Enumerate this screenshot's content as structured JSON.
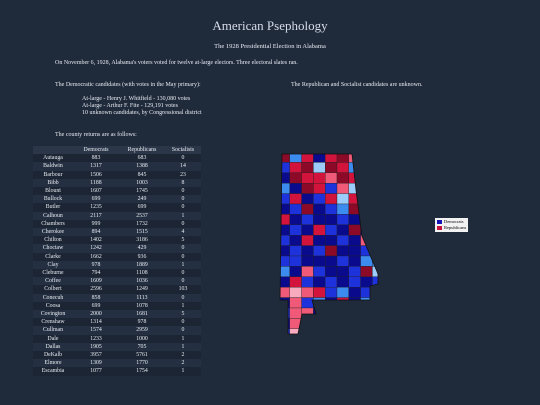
{
  "header": {
    "title": "American Psephology",
    "subtitle": "The 1928 Presidential Election in Alabama"
  },
  "intro": "On November 6, 1928, Alabama's voters voted for twelve at-large electors. Three electoral slates ran.",
  "dem_heading": "The Democratic candidates (with votes in the May primary):",
  "rep_note": "The Republican and Socialist candidates are unknown.",
  "candidates": [
    "At-large - Henry J. Whitfield - 130,080 votes",
    "At-large - Arthur F. Fite - 129,191 votes",
    "10 unknown candidates, by Congressional district"
  ],
  "returns_heading": "The county returns are as follows:",
  "table": {
    "headers": [
      "",
      "Democrats",
      "Republicans",
      "Socialists"
    ],
    "rows": [
      [
        "Autauga",
        "883",
        "683",
        "0"
      ],
      [
        "Baldwin",
        "1317",
        "1388",
        "14"
      ],
      [
        "Barbour",
        "1506",
        "845",
        "23"
      ],
      [
        "Bibb",
        "1188",
        "1003",
        "8"
      ],
      [
        "Blount",
        "1607",
        "1745",
        "0"
      ],
      [
        "Bullock",
        "699",
        "249",
        "0"
      ],
      [
        "Butler",
        "1235",
        "699",
        "0"
      ],
      [
        "Calhoun",
        "2117",
        "2537",
        "1"
      ],
      [
        "Chambers",
        "999",
        "1732",
        "0"
      ],
      [
        "Cherokee",
        "894",
        "1515",
        "4"
      ],
      [
        "Chilton",
        "1402",
        "3186",
        "5"
      ],
      [
        "Choctaw",
        "1242",
        "429",
        "0"
      ],
      [
        "Clarke",
        "1662",
        "936",
        "0"
      ],
      [
        "Clay",
        "978",
        "1889",
        "1"
      ],
      [
        "Cleburne",
        "794",
        "1108",
        "0"
      ],
      [
        "Coffee",
        "1609",
        "1036",
        "0"
      ],
      [
        "Colbert",
        "2596",
        "1249",
        "103"
      ],
      [
        "Conecuh",
        "858",
        "1113",
        "0"
      ],
      [
        "Coosa",
        "699",
        "1078",
        "1"
      ],
      [
        "Covington",
        "2000",
        "1681",
        "5"
      ],
      [
        "Crenshaw",
        "1314",
        "978",
        "0"
      ],
      [
        "Cullman",
        "1574",
        "2959",
        "0"
      ],
      [
        "Dale",
        "1233",
        "1000",
        "1"
      ],
      [
        "Dallas",
        "1905",
        "705",
        "1"
      ],
      [
        "DeKalb",
        "3957",
        "5761",
        "2"
      ],
      [
        "Elmore",
        "1309",
        "1770",
        "2"
      ],
      [
        "Escambia",
        "1077",
        "1754",
        "1"
      ]
    ]
  },
  "legend": {
    "items": [
      {
        "label": "Democrats",
        "color": "#1414b4"
      },
      {
        "label": "Republicans",
        "color": "#c8143c"
      }
    ]
  },
  "colors": {
    "background": "#1f2a3b",
    "dem_dark": "#0a0a8c",
    "dem_mid": "#1e32dc",
    "dem_light": "#3c8cf0",
    "dem_pale": "#9ccdfa",
    "rep_dark": "#8c0a28",
    "rep_mid": "#d2143c",
    "rep_light": "#f05a78",
    "rep_pale": "#f8aabe"
  }
}
